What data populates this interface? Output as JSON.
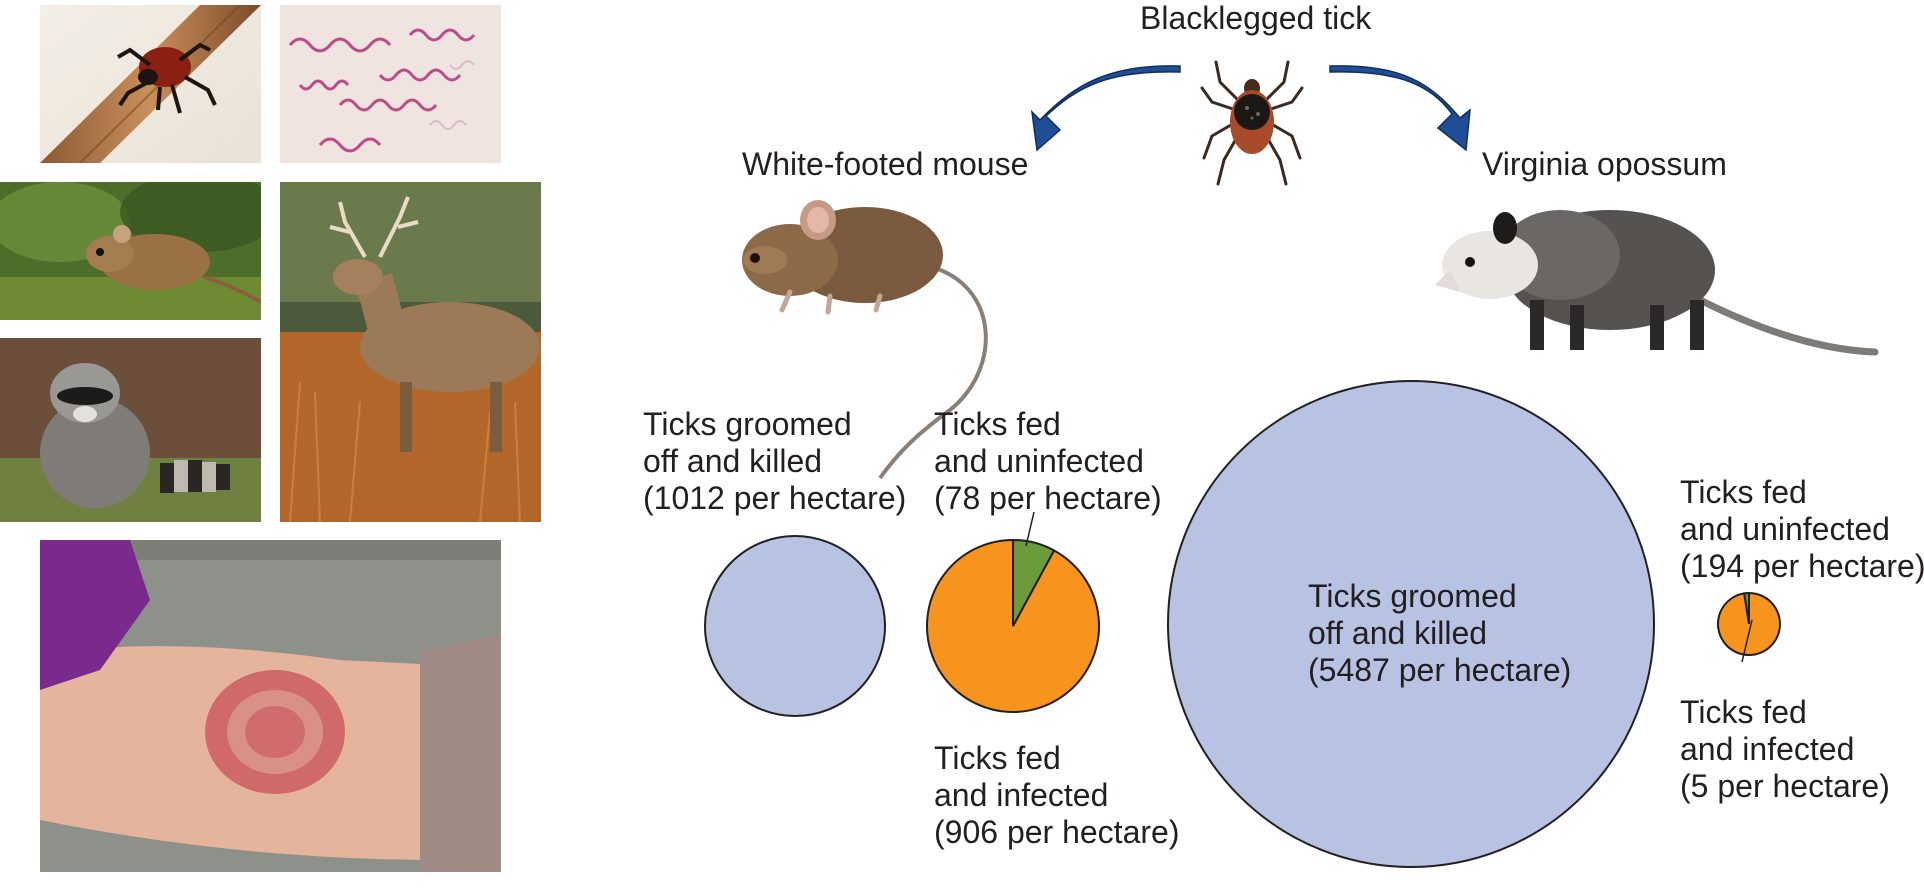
{
  "title": "Blacklegged tick",
  "hosts": [
    {
      "name": "White-footed mouse"
    },
    {
      "name": "Virginia opossum"
    }
  ],
  "mouse_labels": {
    "groomed": [
      "Ticks groomed",
      "off and killed",
      "(1012 per hectare)"
    ],
    "uninfected": [
      "Ticks fed",
      "and uninfected",
      "(78 per hectare)"
    ],
    "infected": [
      "Ticks fed",
      "and infected",
      "(906 per hectare)"
    ]
  },
  "opossum_labels": {
    "groomed": [
      "Ticks groomed",
      "off and killed",
      "(5487 per hectare)"
    ],
    "uninfected": [
      "Ticks fed",
      "and uninfected",
      "(194 per hectare)"
    ],
    "infected": [
      "Ticks fed",
      "and infected",
      "(5 per hectare)"
    ]
  },
  "chart_data": [
    {
      "type": "pie",
      "host": "White-footed mouse",
      "categories": [
        "Ticks groomed off and killed"
      ],
      "values": [
        1012
      ],
      "unit": "per hectare"
    },
    {
      "type": "pie",
      "host": "White-footed mouse",
      "categories": [
        "Ticks fed and uninfected",
        "Ticks fed and infected"
      ],
      "values": [
        78,
        906
      ],
      "unit": "per hectare"
    },
    {
      "type": "pie",
      "host": "Virginia opossum",
      "categories": [
        "Ticks groomed off and killed"
      ],
      "values": [
        5487
      ],
      "unit": "per hectare"
    },
    {
      "type": "pie",
      "host": "Virginia opossum",
      "categories": [
        "Ticks fed and uninfected",
        "Ticks fed and infected"
      ],
      "values": [
        194,
        5
      ],
      "unit": "per hectare"
    }
  ],
  "colors": {
    "groomed": "#b8c3e3",
    "uninfected": "#f7941d",
    "infected": "#6b9b3a",
    "arrow": "#1f4e96",
    "outline": "#231f20"
  },
  "photos": [
    "tick-on-wood",
    "spirochete-bacteria",
    "mouse-photo",
    "deer-photo",
    "raccoon-photo",
    "bullseye-rash-photo"
  ]
}
